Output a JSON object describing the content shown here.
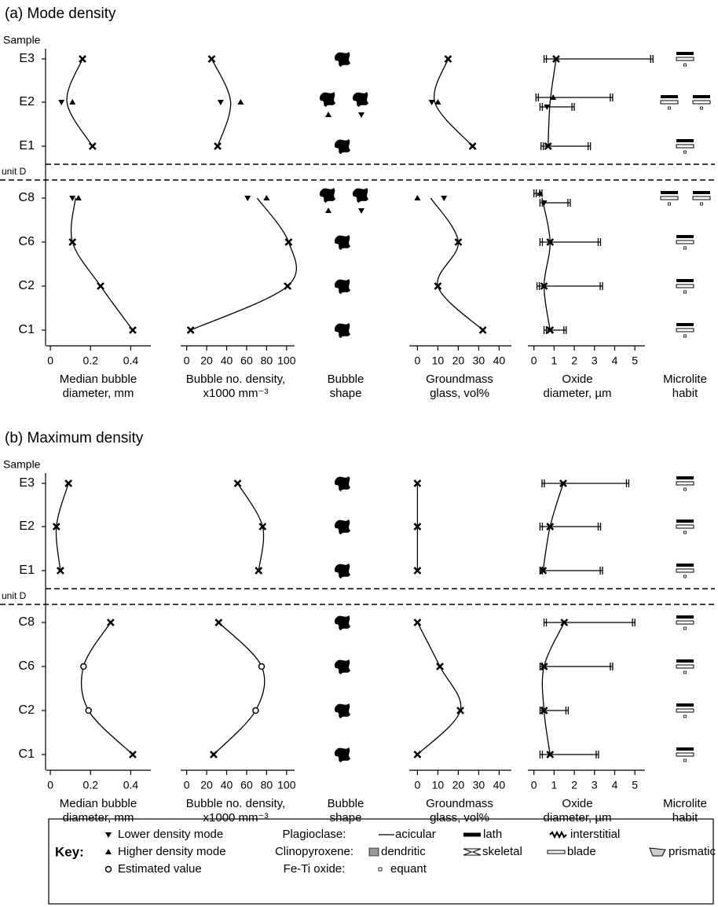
{
  "chart_data": [
    {
      "type": "profile",
      "title": "(a) Mode density",
      "ylabel": "Sample",
      "categories": [
        "E3",
        "E2",
        "E1",
        "C8",
        "C6",
        "C2",
        "C1"
      ],
      "divider_label": "unit D",
      "columns": [
        {
          "type": "scatter",
          "xlabel": [
            "Median bubble",
            "diameter, mm"
          ],
          "xlim": [
            -0.02,
            0.5
          ],
          "xticks": [
            0,
            0.2,
            0.4
          ],
          "series": [
            {
              "marker": "cross",
              "values": [
                0.16,
                null,
                0.21,
                null,
                0.11,
                0.25,
                0.41
              ]
            },
            {
              "marker": "down",
              "values": [
                null,
                0.055,
                null,
                0.11,
                null,
                null,
                null
              ]
            },
            {
              "marker": "up",
              "values": [
                null,
                0.11,
                null,
                0.14,
                null,
                null,
                null
              ]
            }
          ]
        },
        {
          "type": "scatter",
          "xlabel": [
            "Bubble no. density,",
            "x1000 mm⁻³"
          ],
          "xlim": [
            -6,
            108
          ],
          "xticks": [
            0,
            20,
            40,
            60,
            80,
            100
          ],
          "series": [
            {
              "marker": "cross",
              "values": [
                25,
                null,
                31,
                null,
                102,
                101,
                4
              ]
            },
            {
              "marker": "down",
              "values": [
                null,
                34,
                null,
                61,
                null,
                null,
                null
              ]
            },
            {
              "marker": "up",
              "values": [
                null,
                54,
                null,
                80,
                null,
                null,
                null
              ]
            }
          ]
        },
        {
          "type": "shape",
          "xlabel": [
            "Bubble",
            "shape"
          ]
        },
        {
          "type": "scatter",
          "xlabel": [
            "Groundmass",
            "glass, vol%"
          ],
          "xlim": [
            -4,
            46
          ],
          "xticks": [
            0,
            10,
            20,
            30,
            40
          ],
          "series": [
            {
              "marker": "cross",
              "values": [
                15,
                null,
                27,
                null,
                20,
                10,
                32
              ]
            },
            {
              "marker": "down",
              "values": [
                null,
                7,
                null,
                13,
                null,
                null,
                null
              ]
            },
            {
              "marker": "up",
              "values": [
                null,
                10,
                null,
                0,
                null,
                null,
                null
              ]
            }
          ]
        },
        {
          "type": "scatter",
          "xlabel": [
            "Oxide",
            "diameter, µm"
          ],
          "xlim": [
            -0.3,
            5.5
          ],
          "xticks": [
            0,
            1,
            2,
            3,
            4,
            5
          ],
          "series": [
            {
              "marker": "cross",
              "values": [
                1.1,
                null,
                0.7,
                null,
                0.8,
                0.5,
                0.8
              ],
              "min": [
                0.5,
                null,
                0.35,
                null,
                0.3,
                0.15,
                0.5
              ],
              "max": [
                5.9,
                null,
                2.8,
                null,
                3.3,
                3.4,
                1.6
              ]
            },
            {
              "marker": "down",
              "values": [
                null,
                0.65,
                null,
                0.5,
                null,
                null,
                null
              ],
              "min": [
                null,
                0.3,
                null,
                0.3,
                null,
                null,
                null
              ],
              "max": [
                null,
                2.0,
                null,
                1.8,
                null,
                null,
                null
              ]
            },
            {
              "marker": "up",
              "values": [
                null,
                0.95,
                null,
                0.3,
                null,
                null,
                null
              ],
              "min": [
                null,
                0.1,
                null,
                0,
                null,
                null,
                null
              ],
              "max": [
                null,
                3.9,
                null,
                0.4,
                null,
                null,
                null
              ]
            }
          ]
        },
        {
          "type": "habit",
          "xlabel": [
            "Microlite",
            "habit"
          ]
        }
      ]
    },
    {
      "type": "profile",
      "title": "(b) Maximum density",
      "ylabel": "Sample",
      "categories": [
        "E3",
        "E2",
        "E1",
        "C8",
        "C6",
        "C2",
        "C1"
      ],
      "divider_label": "unit D",
      "columns": [
        {
          "type": "scatter",
          "xlabel": [
            "Median bubble",
            "diameter, mm"
          ],
          "xlim": [
            -0.02,
            0.5
          ],
          "xticks": [
            0,
            0.2,
            0.4
          ],
          "series": [
            {
              "marker": "cross",
              "values": [
                0.09,
                0.03,
                0.05,
                0.3,
                null,
                null,
                0.41
              ]
            },
            {
              "marker": "circle",
              "values": [
                null,
                null,
                null,
                null,
                0.165,
                0.19,
                null
              ]
            }
          ]
        },
        {
          "type": "scatter",
          "xlabel": [
            "Bubble no. density,",
            "x1000 mm⁻³"
          ],
          "xlim": [
            -6,
            108
          ],
          "xticks": [
            0,
            20,
            40,
            60,
            80,
            100
          ],
          "series": [
            {
              "marker": "cross",
              "values": [
                51,
                76,
                72,
                32,
                null,
                null,
                27
              ]
            },
            {
              "marker": "circle",
              "values": [
                null,
                null,
                null,
                null,
                75,
                69,
                null
              ]
            }
          ]
        },
        {
          "type": "shape",
          "xlabel": [
            "Bubble",
            "shape"
          ]
        },
        {
          "type": "scatter",
          "xlabel": [
            "Groundmass",
            "glass, vol%"
          ],
          "xlim": [
            -4,
            46
          ],
          "xticks": [
            0,
            10,
            20,
            30,
            40
          ],
          "series": [
            {
              "marker": "cross",
              "values": [
                0,
                0,
                0,
                0,
                11,
                21,
                0
              ]
            }
          ]
        },
        {
          "type": "scatter",
          "xlabel": [
            "Oxide",
            "diameter, µm"
          ],
          "xlim": [
            -0.3,
            5.5
          ],
          "xticks": [
            0,
            1,
            2,
            3,
            4,
            5
          ],
          "series": [
            {
              "marker": "cross",
              "values": [
                1.45,
                0.8,
                0.45,
                1.5,
                0.5,
                0.5,
                0.8
              ],
              "min": [
                0.4,
                0.3,
                0.3,
                0.5,
                0.3,
                0.3,
                0.3
              ],
              "max": [
                4.7,
                3.3,
                3.4,
                5.0,
                3.9,
                1.7,
                3.2
              ]
            }
          ]
        },
        {
          "type": "habit",
          "xlabel": [
            "Microlite",
            "habit"
          ]
        }
      ]
    }
  ],
  "key": {
    "title": "Key:",
    "markers": [
      {
        "marker": "down",
        "label": "Lower density mode"
      },
      {
        "marker": "up",
        "label": "Higher density mode"
      },
      {
        "marker": "circle",
        "label": "Estimated value"
      }
    ],
    "minerals": [
      {
        "name": "Plagioclase:",
        "habits": [
          "acicular",
          "lath",
          "interstitial"
        ]
      },
      {
        "name": "Clinopyroxene:",
        "habits": [
          "dendritic",
          "skeletal",
          "blade",
          "prismatic"
        ]
      },
      {
        "name": "Fe-Ti oxide:",
        "habits": [
          "equant"
        ]
      }
    ]
  }
}
